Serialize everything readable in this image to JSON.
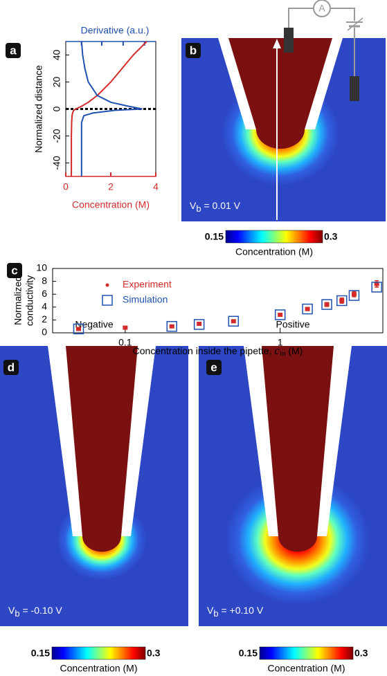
{
  "chart_data": [
    {
      "panel": "a",
      "type": "line",
      "x2_label": "Derivative (a.u.)",
      "xlabel": "Concentration (M)",
      "ylabel": "Normalized distance",
      "y": [
        50,
        40,
        30,
        20,
        10,
        5,
        2,
        0,
        -1,
        -3,
        -5,
        -10,
        -20,
        -30,
        -40,
        -50
      ],
      "xlim": [
        0,
        4
      ],
      "xticks": [
        0,
        2,
        4
      ],
      "x2lim": [
        0,
        4
      ],
      "x2ticks": [
        0.7,
        1.6,
        2.55,
        3.5
      ],
      "ylim": [
        -50,
        50
      ],
      "yticks": [
        -40,
        -20,
        0,
        20,
        40
      ],
      "reference_line": 0,
      "series": [
        {
          "color": "#d42a2a",
          "values": [
            3.6,
            3.0,
            2.5,
            2.0,
            1.4,
            1.0,
            0.7,
            0.45,
            0.35,
            0.3,
            0.28,
            0.26,
            0.25,
            0.25,
            0.25,
            0.25
          ]
        },
        {
          "color": "#2050b0",
          "axis": "x2",
          "values": [
            0.7,
            0.75,
            0.85,
            1.0,
            1.4,
            2.0,
            2.8,
            3.4,
            2.2,
            1.2,
            0.8,
            0.7,
            0.7,
            0.7,
            0.7,
            0.7
          ]
        }
      ]
    },
    {
      "panel": "c",
      "type": "scatter",
      "xlabel_parts": [
        "Concentration inside the pipette, ",
        "c",
        "in",
        " (M)"
      ],
      "ylabel_lines": [
        "Normalized",
        "conductivity"
      ],
      "xscale": "log",
      "xlim": [
        0.034,
        4.6
      ],
      "xticks": [
        0.1,
        1
      ],
      "ylim": [
        0,
        10
      ],
      "yticks": [
        0,
        2,
        4,
        6,
        8,
        10
      ],
      "legend": "upper left",
      "series": [
        {
          "name": "Experiment",
          "color": "#d42a2a",
          "marker": "dot",
          "x": [
            0.05,
            0.1,
            0.2,
            0.3,
            0.5,
            1,
            1.5,
            2,
            2.5,
            3,
            4.2
          ],
          "values": [
            0.6,
            0.8,
            1.0,
            1.4,
            1.8,
            2.8,
            3.7,
            4.4,
            5.0,
            6.0,
            7.6
          ],
          "errors": [
            0.15,
            0.1,
            0.15,
            0.15,
            0.15,
            0.2,
            0.25,
            0.3,
            0.4,
            0.4,
            0.5
          ]
        },
        {
          "name": "Simulation",
          "color": "#2050b0",
          "marker": "square",
          "x": [
            0.05,
            0.2,
            0.3,
            0.5,
            1,
            1.5,
            2,
            2.5,
            3,
            4.2
          ],
          "values": [
            0.6,
            1.0,
            1.3,
            1.8,
            2.8,
            3.7,
            4.4,
            5.0,
            5.8,
            7.1
          ]
        }
      ]
    }
  ],
  "heatmaps": [
    {
      "label": "b",
      "vb": [
        "V",
        "b",
        " = 0.01 V"
      ]
    },
    {
      "label": "d",
      "title": "Negative",
      "vb": [
        "V",
        "b",
        " = -0.10 V"
      ]
    },
    {
      "label": "e",
      "title": "Positive",
      "vb": [
        "V",
        "b",
        " = +0.10 V"
      ]
    }
  ],
  "circuit": {
    "meter": "A"
  },
  "colorbar": {
    "ticks": [
      0.15,
      0.3
    ],
    "label": "Concentration (M)"
  }
}
